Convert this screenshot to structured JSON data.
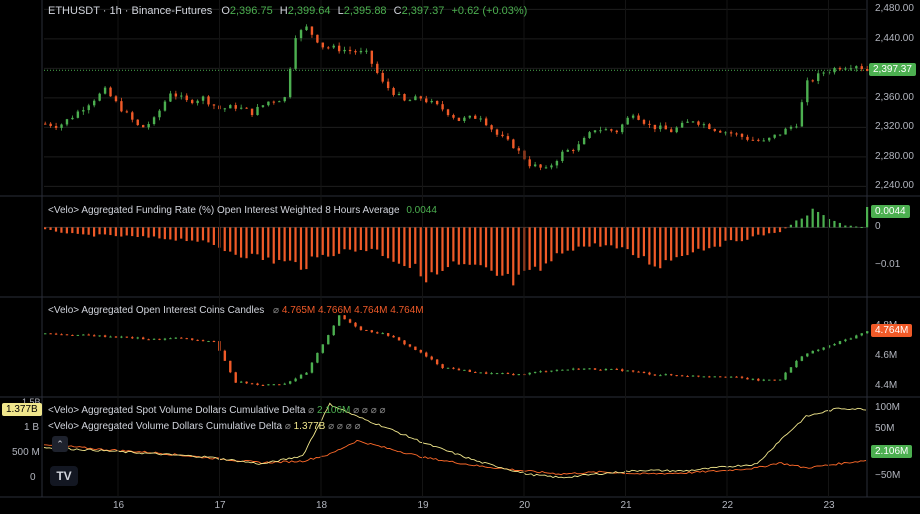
{
  "header": {
    "symbol": "ETHUSDT · 1h · Binance-Futures",
    "o_label": "O",
    "o": "2,396.75",
    "h_label": "H",
    "h": "2,399.64",
    "l_label": "L",
    "l": "2,395.88",
    "c_label": "C",
    "c": "2,397.37",
    "change": "+0.62 (+0.03%)"
  },
  "funding": {
    "title": "<Velo> Aggregated Funding Rate (%) Open Interest Weighted 8 Hours Average",
    "value": "0.0044"
  },
  "oi": {
    "title": "<Velo> Aggregated Open Interest Coins Candles",
    "icon": "⌀",
    "values": [
      "4.765M",
      "4.766M",
      "4.764M",
      "4.764M"
    ]
  },
  "cvd_spot": {
    "title": "<Velo> Aggregated Spot Volume Dollars Cumulative Delta",
    "icon": "⌀",
    "value": "2.106M",
    "dots": "⌀ ⌀ ⌀ ⌀"
  },
  "cvd_perp": {
    "title": "<Velo> Aggregated Volume Dollars Cumulative Delta",
    "icon": "⌀",
    "value": "1.377B",
    "dots": "⌀ ⌀ ⌀ ⌀"
  },
  "price_axis": {
    "ticks": [
      "2,480.00",
      "2,440.00",
      "2,400.00",
      "2,360.00",
      "2,320.00",
      "2,280.00",
      "2,240.00"
    ],
    "tick_values": [
      2480,
      2440,
      2400,
      2360,
      2320,
      2280,
      2240
    ],
    "last": "2,397.37",
    "last_value": 2397.37
  },
  "funding_axis": {
    "ticks": [
      "0",
      "−0.01"
    ],
    "tick_values": [
      0,
      -0.01
    ],
    "last": "0.0044"
  },
  "oi_axis": {
    "ticks": [
      "4.8M",
      "4.6M",
      "4.4M"
    ],
    "tick_values": [
      4.8,
      4.6,
      4.4
    ],
    "last": "4.764M"
  },
  "cvd_axis": {
    "right_ticks": [
      "100M",
      "50M",
      "−50M"
    ],
    "right_last": "2.106M",
    "left_ticks": [
      "1.5B",
      "1 B",
      "500 M",
      "0"
    ],
    "left_last": "1.377B"
  },
  "time_axis": {
    "labels": [
      "16",
      "17",
      "18",
      "19",
      "20",
      "21",
      "22",
      "23"
    ]
  },
  "colors": {
    "up": "#4caf50",
    "down": "#f05a28",
    "spot_line": "#ff6a2a",
    "perp_line": "#f0e68c",
    "grid": "#1e1e1e"
  },
  "chart_data": [
    {
      "type": "candlestick",
      "title": "ETHUSDT · 1h · Binance-Futures",
      "ylim": [
        2235,
        2490
      ],
      "x": [
        "16",
        "17",
        "18",
        "19",
        "20",
        "21",
        "22",
        "23"
      ],
      "anchors": [
        [
          0,
          2325
        ],
        [
          5,
          2322
        ],
        [
          10,
          2335
        ],
        [
          15,
          2350
        ],
        [
          22,
          2370
        ],
        [
          28,
          2345
        ],
        [
          35,
          2318
        ],
        [
          40,
          2330
        ],
        [
          46,
          2368
        ],
        [
          52,
          2355
        ],
        [
          58,
          2360
        ],
        [
          64,
          2345
        ],
        [
          70,
          2348
        ],
        [
          76,
          2340
        ],
        [
          82,
          2355
        ],
        [
          88,
          2360
        ],
        [
          92,
          2445
        ],
        [
          96,
          2455
        ],
        [
          102,
          2430
        ],
        [
          110,
          2425
        ],
        [
          118,
          2420
        ],
        [
          124,
          2380
        ],
        [
          132,
          2355
        ],
        [
          138,
          2360
        ],
        [
          146,
          2345
        ],
        [
          152,
          2330
        ],
        [
          160,
          2335
        ],
        [
          166,
          2310
        ],
        [
          172,
          2295
        ],
        [
          178,
          2270
        ],
        [
          184,
          2262
        ],
        [
          190,
          2285
        ],
        [
          196,
          2295
        ],
        [
          202,
          2318
        ],
        [
          210,
          2315
        ],
        [
          216,
          2340
        ],
        [
          222,
          2322
        ],
        [
          230,
          2315
        ],
        [
          238,
          2330
        ],
        [
          246,
          2318
        ],
        [
          252,
          2312
        ],
        [
          258,
          2305
        ],
        [
          264,
          2300
        ],
        [
          270,
          2312
        ],
        [
          276,
          2325
        ],
        [
          280,
          2380
        ],
        [
          286,
          2395
        ],
        [
          292,
          2402
        ],
        [
          298,
          2405
        ],
        [
          302,
          2397.37
        ]
      ]
    },
    {
      "type": "bar",
      "title": "<Velo> Aggregated Funding Rate (%) Open Interest Weighted 8 Hours Average",
      "ylim": [
        -0.016,
        0.006
      ],
      "anchors": [
        [
          0,
          -0.0005
        ],
        [
          12,
          -0.0018
        ],
        [
          25,
          -0.002
        ],
        [
          40,
          -0.0025
        ],
        [
          55,
          -0.003
        ],
        [
          70,
          -0.006
        ],
        [
          85,
          -0.008
        ],
        [
          95,
          -0.009
        ],
        [
          105,
          -0.006
        ],
        [
          120,
          -0.005
        ],
        [
          130,
          -0.008
        ],
        [
          142,
          -0.012
        ],
        [
          150,
          -0.009
        ],
        [
          160,
          -0.01
        ],
        [
          172,
          -0.013
        ],
        [
          182,
          -0.01
        ],
        [
          192,
          -0.005
        ],
        [
          205,
          -0.004
        ],
        [
          215,
          -0.006
        ],
        [
          225,
          -0.009
        ],
        [
          235,
          -0.006
        ],
        [
          248,
          -0.004
        ],
        [
          262,
          -0.002
        ],
        [
          270,
          -0.001
        ],
        [
          276,
          0.0015
        ],
        [
          282,
          0.004
        ],
        [
          288,
          0.002
        ],
        [
          294,
          0.0005
        ],
        [
          300,
          0.0001
        ],
        [
          302,
          0.0044
        ]
      ]
    },
    {
      "type": "candlestick",
      "title": "<Velo> Aggregated Open Interest Coins Candles",
      "ylim": [
        4.33,
        4.98
      ],
      "anchors": [
        [
          0,
          4.75
        ],
        [
          12,
          4.74
        ],
        [
          25,
          4.73
        ],
        [
          40,
          4.71
        ],
        [
          50,
          4.72
        ],
        [
          56,
          4.7
        ],
        [
          62,
          4.7
        ],
        [
          70,
          4.42
        ],
        [
          80,
          4.4
        ],
        [
          88,
          4.41
        ],
        [
          96,
          4.48
        ],
        [
          102,
          4.68
        ],
        [
          108,
          4.87
        ],
        [
          116,
          4.78
        ],
        [
          126,
          4.74
        ],
        [
          136,
          4.64
        ],
        [
          146,
          4.52
        ],
        [
          160,
          4.48
        ],
        [
          174,
          4.47
        ],
        [
          186,
          4.5
        ],
        [
          198,
          4.51
        ],
        [
          212,
          4.5
        ],
        [
          224,
          4.47
        ],
        [
          238,
          4.46
        ],
        [
          250,
          4.46
        ],
        [
          262,
          4.43
        ],
        [
          270,
          4.44
        ],
        [
          278,
          4.6
        ],
        [
          290,
          4.68
        ],
        [
          302,
          4.764
        ]
      ]
    },
    {
      "type": "line",
      "series": [
        {
          "name": "<Velo> Aggregated Spot Volume Dollars Cumulative Delta",
          "ylim": [
            -100,
            180
          ],
          "anchors": [
            [
              0,
              50
            ],
            [
              20,
              35
            ],
            [
              40,
              25
            ],
            [
              60,
              10
            ],
            [
              80,
              -5
            ],
            [
              95,
              0
            ],
            [
              105,
              20
            ],
            [
              115,
              60
            ],
            [
              125,
              40
            ],
            [
              140,
              10
            ],
            [
              160,
              -15
            ],
            [
              178,
              -30
            ],
            [
              190,
              -38
            ],
            [
              205,
              -32
            ],
            [
              220,
              -38
            ],
            [
              235,
              -35
            ],
            [
              250,
              -28
            ],
            [
              262,
              -20
            ],
            [
              270,
              -5
            ],
            [
              280,
              -20
            ],
            [
              292,
              -8
            ],
            [
              302,
              2.106
            ]
          ]
        },
        {
          "name": "<Velo> Aggregated Volume Dollars Cumulative Delta",
          "ylim": [
            -0.7,
            1.6
          ],
          "anchors": [
            [
              0,
              0.45
            ],
            [
              20,
              0.38
            ],
            [
              40,
              0.3
            ],
            [
              60,
              0.22
            ],
            [
              80,
              0.05
            ],
            [
              95,
              0.25
            ],
            [
              105,
              1.5
            ],
            [
              115,
              1.2
            ],
            [
              125,
              0.95
            ],
            [
              140,
              0.55
            ],
            [
              160,
              0.1
            ],
            [
              178,
              -0.2
            ],
            [
              190,
              -0.28
            ],
            [
              205,
              -0.18
            ],
            [
              220,
              -0.1
            ],
            [
              235,
              -0.12
            ],
            [
              250,
              -0.02
            ],
            [
              262,
              0.05
            ],
            [
              270,
              0.6
            ],
            [
              280,
              1.2
            ],
            [
              292,
              1.4
            ],
            [
              302,
              1.377
            ]
          ]
        }
      ]
    }
  ]
}
